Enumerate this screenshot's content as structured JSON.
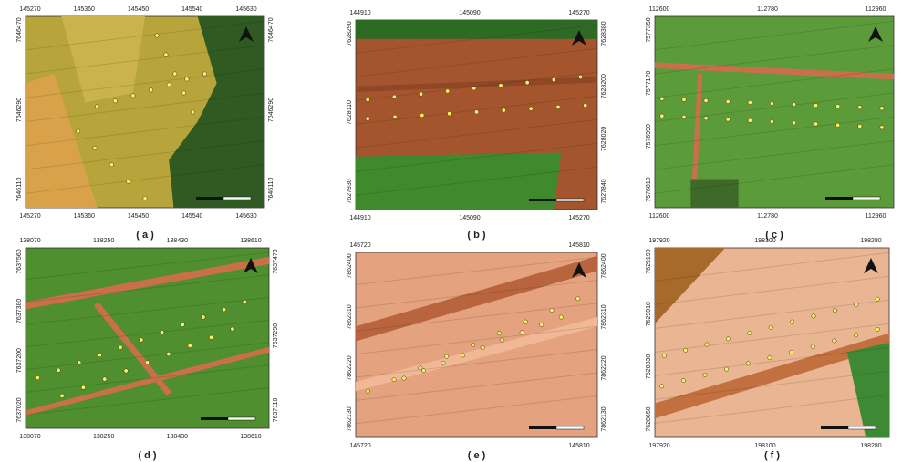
{
  "panels": [
    {
      "label": "( a )",
      "top": [
        145270,
        145360,
        145450,
        145540,
        145630
      ],
      "bottom": [
        145270,
        145360,
        145450,
        145540,
        145630
      ],
      "left": [
        7646470,
        7646290,
        7646110
      ],
      "right": [
        7646470,
        7646290,
        7646110
      ]
    },
    {
      "label": "( b )",
      "top": [
        144910,
        145090,
        145270
      ],
      "bottom": [
        144910,
        145090,
        145270
      ],
      "left": [
        7628290,
        7628110,
        7627930
      ],
      "right": [
        7628380,
        7628200,
        7628020,
        7627840
      ]
    },
    {
      "label": "( c )",
      "top": [
        112600,
        112780,
        112960
      ],
      "bottom": [
        112600,
        112780,
        112960
      ],
      "left": [
        7577350,
        7577170,
        7576990,
        7576810
      ],
      "right": []
    },
    {
      "label": "( d )",
      "top": [
        138070,
        138250,
        138430,
        138610
      ],
      "bottom": [
        138070,
        138250,
        138430,
        138610
      ],
      "left": [
        7637560,
        7637380,
        7637200,
        7637020
      ],
      "right": [
        7637470,
        7637290,
        7637110
      ]
    },
    {
      "label": "( e )",
      "top": [
        145720,
        145810
      ],
      "bottom": [
        145720,
        145810
      ],
      "left": [
        7862400,
        7862310,
        7862220,
        7862130
      ],
      "right": [
        7862400,
        7862310,
        7862220,
        7862130
      ]
    },
    {
      "label": "( f )",
      "top": [
        197920,
        198100,
        198280
      ],
      "bottom": [
        197920,
        198100,
        198280
      ],
      "left": [
        7629190,
        7629010,
        7628830,
        7628650
      ],
      "right": []
    }
  ]
}
